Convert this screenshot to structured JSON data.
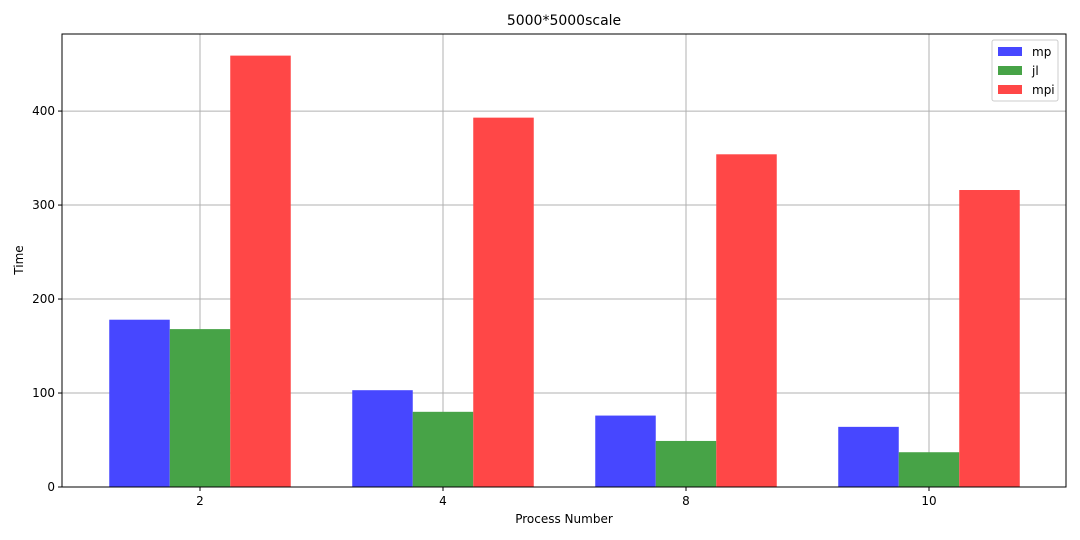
{
  "chart_data": {
    "type": "bar",
    "title": "5000*5000scale",
    "xlabel": "Process Number",
    "ylabel": "Time",
    "categories": [
      "2",
      "4",
      "8",
      "10"
    ],
    "series": [
      {
        "name": "mp",
        "color": "#4747ff",
        "values": [
          178,
          103,
          76,
          64
        ]
      },
      {
        "name": "jl",
        "color": "#47a347",
        "values": [
          168,
          80,
          49,
          37
        ]
      },
      {
        "name": "mpi",
        "color": "#ff4747",
        "values": [
          459,
          393,
          354,
          316
        ]
      }
    ],
    "yticks": [
      0,
      100,
      200,
      300,
      400
    ],
    "ylim": [
      0,
      482
    ],
    "grid": true,
    "legend_position": "top-right"
  }
}
